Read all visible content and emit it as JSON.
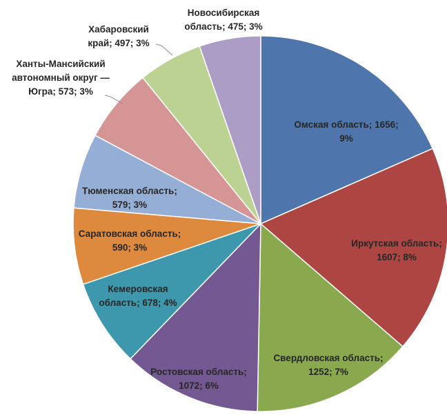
{
  "chart_data": {
    "type": "pie",
    "title": "",
    "start_angle_deg": 0,
    "direction": "clockwise",
    "slices": [
      {
        "name": "Омская область",
        "value": 1656,
        "percent": "9%",
        "color": "#4f76ac",
        "label_lines": [
          "Омская область; 1656;",
          "9%"
        ]
      },
      {
        "name": "Иркутская область",
        "value": 1607,
        "percent": "8%",
        "color": "#ad4643",
        "label_lines": [
          "Иркутская область;",
          "1607; 8%"
        ]
      },
      {
        "name": "Свердловская область",
        "value": 1252,
        "percent": "7%",
        "color": "#8aa84d",
        "label_lines": [
          "Свердловская область;",
          "1252; 7%"
        ]
      },
      {
        "name": "Ростовская область",
        "value": 1072,
        "percent": "6%",
        "color": "#735892",
        "label_lines": [
          "Ростовская область;",
          "1072; 6%"
        ]
      },
      {
        "name": "Кемеровская область",
        "value": 678,
        "percent": "4%",
        "color": "#3e98ad",
        "label_lines": [
          "Кемеровская",
          "область; 678; 4%"
        ]
      },
      {
        "name": "Саратовская область",
        "value": 590,
        "percent": "3%",
        "color": "#dd8a3f",
        "label_lines": [
          "Саратовская область;",
          "590; 3%"
        ]
      },
      {
        "name": "Тюменская область",
        "value": 579,
        "percent": "3%",
        "color": "#95aed5",
        "label_lines": [
          "Тюменская область;",
          "579; 3%"
        ]
      },
      {
        "name": "Ханты-Мансийский автономный округ — Югра",
        "value": 573,
        "percent": "3%",
        "color": "#d59595",
        "label_lines": [
          "Ханты-Мансийский",
          "автономный округ —",
          "Югра; 573; 3%"
        ]
      },
      {
        "name": "Хабаровский край",
        "value": 497,
        "percent": "3%",
        "color": "#bcd293",
        "label_lines": [
          "Хабаровский",
          "край; 497; 3%"
        ]
      },
      {
        "name": "Новосибирская область",
        "value": 475,
        "percent": "3%",
        "color": "#ab9dc6",
        "label_lines": [
          "Новосибирская",
          "область; 475; 3%"
        ]
      }
    ]
  }
}
